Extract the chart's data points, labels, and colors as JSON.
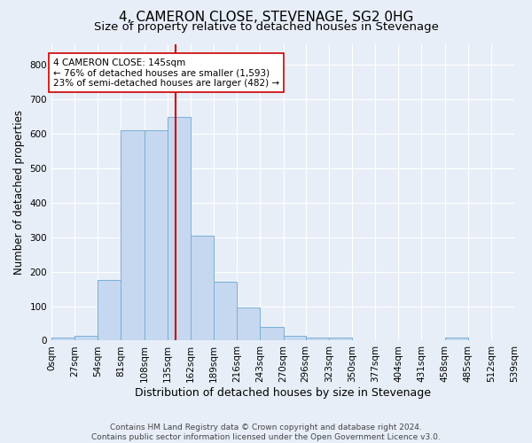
{
  "title": "4, CAMERON CLOSE, STEVENAGE, SG2 0HG",
  "subtitle": "Size of property relative to detached houses in Stevenage",
  "xlabel": "Distribution of detached houses by size in Stevenage",
  "ylabel": "Number of detached properties",
  "bin_edges": [
    0,
    27,
    54,
    81,
    108,
    135,
    162,
    189,
    216,
    243,
    270,
    296,
    323,
    350,
    377,
    404,
    431,
    458,
    485,
    512,
    539
  ],
  "bar_heights": [
    8,
    13,
    175,
    610,
    610,
    650,
    305,
    170,
    97,
    40,
    15,
    10,
    8,
    0,
    0,
    0,
    0,
    8,
    0,
    0
  ],
  "bar_color": "#c5d8f0",
  "bar_edge_color": "#7aafd4",
  "property_size": 145,
  "vline_color": "#cc0000",
  "annotation_line1": "4 CAMERON CLOSE: 145sqm",
  "annotation_line2": "← 76% of detached houses are smaller (1,593)",
  "annotation_line3": "23% of semi-detached houses are larger (482) →",
  "annotation_box_color": "#ffffff",
  "annotation_box_edge_color": "#cc0000",
  "ylim": [
    0,
    860
  ],
  "yticks": [
    0,
    100,
    200,
    300,
    400,
    500,
    600,
    700,
    800
  ],
  "footer_line1": "Contains HM Land Registry data © Crown copyright and database right 2024.",
  "footer_line2": "Contains public sector information licensed under the Open Government Licence v3.0.",
  "bg_color": "#e8eef8",
  "plot_bg_color": "#e8eef8",
  "grid_color": "#ffffff",
  "title_fontsize": 11,
  "subtitle_fontsize": 9.5,
  "xlabel_fontsize": 9,
  "ylabel_fontsize": 8.5,
  "tick_fontsize": 7.5,
  "footer_fontsize": 6.5,
  "annotation_fontsize": 7.5
}
